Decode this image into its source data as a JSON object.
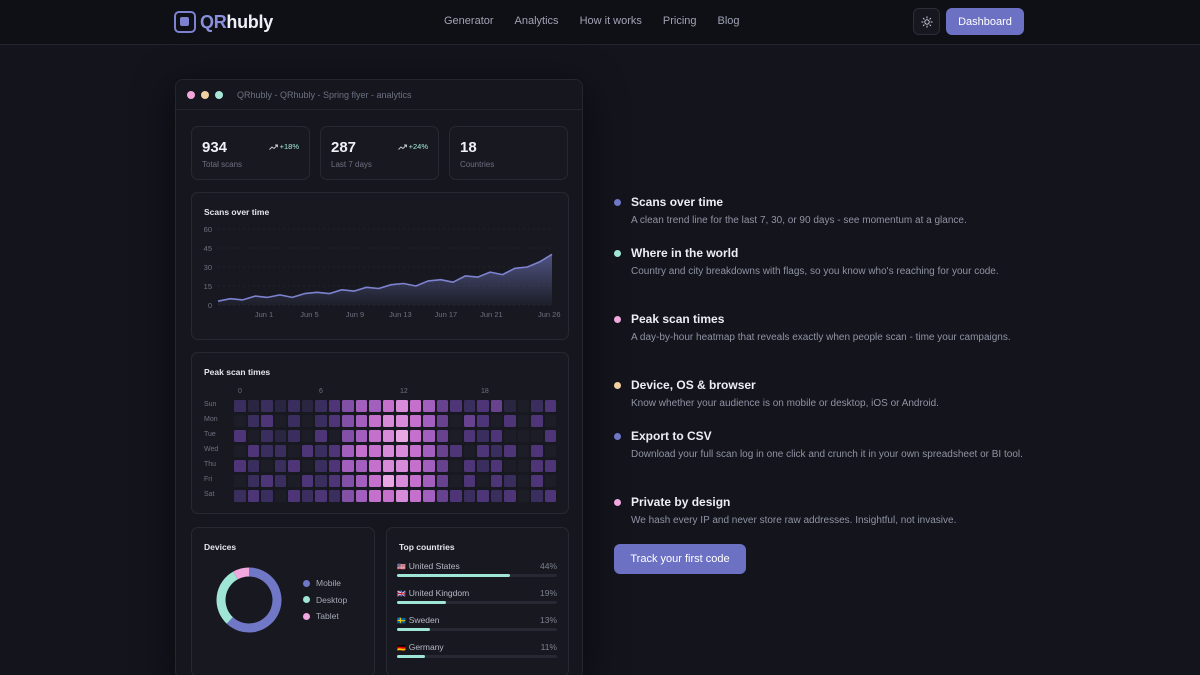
{
  "nav": {
    "logo_qr": "QR",
    "logo_rest": "hubly",
    "links": [
      "Generator",
      "Analytics",
      "How it works",
      "Pricing",
      "Blog"
    ],
    "dashboard_label": "Dashboard",
    "theme_icon": "sun-icon"
  },
  "window": {
    "title": "QRhubly - QRhubly - Spring flyer - analytics",
    "dot_colors": [
      "#f3a6d8",
      "#f1cfa0",
      "#a8e6d8"
    ]
  },
  "stats": [
    {
      "value": "934",
      "label": "Total scans",
      "trend": "+18%"
    },
    {
      "value": "287",
      "label": "Last 7 days",
      "trend": "+24%"
    },
    {
      "value": "18",
      "label": "Countries",
      "trend": ""
    }
  ],
  "scans_chart": {
    "title": "Scans over time",
    "chart_data": {
      "type": "area",
      "title": "Scans over time",
      "y_ticks": [
        "0",
        "15",
        "30",
        "45",
        "60"
      ],
      "ylim": [
        0,
        60
      ],
      "x_ticks": [
        "Jun 1",
        "Jun 5",
        "Jun 9",
        "Jun 13",
        "Jun 17",
        "Jun 21",
        "Jun 26"
      ],
      "x": [
        1,
        2,
        3,
        4,
        5,
        6,
        7,
        8,
        9,
        10,
        11,
        12,
        13,
        14,
        15,
        16,
        17,
        18,
        19,
        20,
        21,
        22,
        23,
        24,
        25,
        26,
        27,
        28
      ],
      "values": [
        3,
        5,
        4,
        7,
        6,
        8,
        6,
        9,
        10,
        9,
        12,
        11,
        14,
        13,
        16,
        17,
        15,
        19,
        20,
        18,
        23,
        22,
        26,
        24,
        29,
        30,
        34,
        40
      ],
      "grid": true,
      "color": "#7d82d0"
    }
  },
  "heatmap": {
    "title": "Peak scan times",
    "hour_labels": [
      "0",
      "6",
      "12",
      "18"
    ],
    "days": [
      "Sun",
      "Mon",
      "Tue",
      "Wed",
      "Thu",
      "Fri",
      "Sat"
    ],
    "chart_data": {
      "type": "heatmap",
      "title": "Peak scan times",
      "rows": [
        "Sun",
        "Mon",
        "Tue",
        "Wed",
        "Thu",
        "Fri",
        "Sat"
      ],
      "columns": [
        "0",
        "1",
        "2",
        "3",
        "4",
        "5",
        "6",
        "7",
        "8",
        "9",
        "10",
        "11",
        "12",
        "13",
        "14",
        "15",
        "16",
        "17",
        "18",
        "19",
        "20",
        "21",
        "22",
        "23"
      ],
      "values": [
        [
          2,
          1,
          2,
          1,
          2,
          1,
          2,
          3,
          5,
          6,
          6,
          7,
          8,
          7,
          6,
          4,
          3,
          2,
          3,
          4,
          1,
          0,
          2,
          3
        ],
        [
          0,
          2,
          3,
          0,
          2,
          0,
          2,
          3,
          5,
          6,
          7,
          8,
          8,
          7,
          6,
          4,
          0,
          4,
          3,
          0,
          3,
          0,
          3,
          0
        ],
        [
          3,
          0,
          2,
          1,
          2,
          0,
          3,
          0,
          5,
          6,
          7,
          8,
          9,
          7,
          6,
          4,
          0,
          3,
          2,
          3,
          0,
          0,
          0,
          3
        ],
        [
          0,
          3,
          2,
          2,
          0,
          3,
          2,
          3,
          6,
          7,
          7,
          8,
          8,
          7,
          6,
          4,
          3,
          0,
          3,
          2,
          3,
          0,
          3,
          0
        ],
        [
          3,
          2,
          0,
          2,
          3,
          0,
          2,
          3,
          6,
          6,
          7,
          8,
          8,
          7,
          6,
          4,
          0,
          3,
          2,
          3,
          0,
          0,
          3,
          3
        ],
        [
          0,
          2,
          3,
          2,
          0,
          3,
          2,
          3,
          5,
          6,
          7,
          9,
          8,
          7,
          6,
          4,
          0,
          3,
          0,
          3,
          2,
          0,
          3,
          0
        ],
        [
          2,
          3,
          2,
          0,
          3,
          2,
          3,
          2,
          5,
          6,
          7,
          7,
          8,
          7,
          6,
          4,
          3,
          2,
          3,
          2,
          3,
          0,
          2,
          3
        ]
      ]
    }
  },
  "devices": {
    "title": "Devices",
    "chart_data": {
      "type": "pie",
      "title": "Devices",
      "labels": [
        "Mobile",
        "Desktop",
        "Tablet"
      ],
      "values": [
        62,
        30,
        8
      ],
      "colors": [
        "#7077c6",
        "#9fe6d6",
        "#f0a8de"
      ]
    }
  },
  "countries": {
    "title": "Top countries",
    "items": [
      {
        "flag": "🇺🇸",
        "name": "United States",
        "pct": "44%",
        "value": 44
      },
      {
        "flag": "🇬🇧",
        "name": "United Kingdom",
        "pct": "19%",
        "value": 19
      },
      {
        "flag": "🇸🇪",
        "name": "Sweden",
        "pct": "13%",
        "value": 13
      },
      {
        "flag": "🇩🇪",
        "name": "Germany",
        "pct": "11%",
        "value": 11
      }
    ]
  },
  "features": [
    {
      "title": "Scans over time",
      "desc": "A clean trend line for the last 7, 30, or 90 days - see momentum at a glance.",
      "color": "#7077c6"
    },
    {
      "title": "Where in the world",
      "desc": "Country and city breakdowns with flags, so you know who's reaching for your code.",
      "color": "#9fe6d6"
    },
    {
      "title": "Peak scan times",
      "desc": "A day-by-hour heatmap that reveals exactly when people scan - time your campaigns.",
      "color": "#f0a8de"
    },
    {
      "title": "Device, OS & browser",
      "desc": "Know whether your audience is on mobile or desktop, iOS or Android.",
      "color": "#f1cfa0"
    },
    {
      "title": "Export to CSV",
      "desc": "Download your full scan log in one click and crunch it in your own spreadsheet or BI tool.",
      "color": "#7077c6"
    },
    {
      "title": "Private by design",
      "desc": "We hash every IP and never store raw addresses. Insightful, not invasive.",
      "color": "#f0a8de"
    }
  ],
  "cta_label": "Track your first code"
}
